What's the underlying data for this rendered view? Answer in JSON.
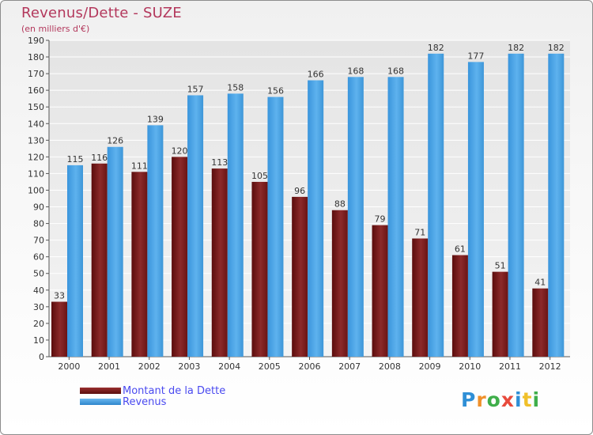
{
  "title": "Revenus/Dette - SUZE",
  "subtitle": "(en milliers d'€)",
  "logo": {
    "text": "Proxiti",
    "letters": [
      "P",
      "r",
      "o",
      "x",
      "i",
      "t",
      "i"
    ],
    "colors": [
      "#2f8fd6",
      "#f0902a",
      "#3fae4a",
      "#e84a3c",
      "#2f8fd6",
      "#f0c02a",
      "#3fae4a"
    ]
  },
  "chart_data": {
    "type": "bar",
    "categories": [
      "2000",
      "2001",
      "2002",
      "2003",
      "2004",
      "2005",
      "2006",
      "2007",
      "2008",
      "2009",
      "2010",
      "2011",
      "2012"
    ],
    "series": [
      {
        "name": "Montant de la Dette",
        "color": "#7a1f1f",
        "values": [
          33,
          116,
          111,
          120,
          113,
          105,
          96,
          88,
          79,
          71,
          61,
          51,
          41
        ],
        "labels": [
          "33",
          "116",
          "111",
          "120",
          "113",
          "105",
          "96",
          "88",
          "79",
          "71",
          "61",
          "51",
          "41"
        ]
      },
      {
        "name": "Revenus",
        "color": "#4aa3e6",
        "values": [
          115,
          126,
          139,
          157,
          158,
          156,
          166,
          168,
          168,
          182,
          177,
          182,
          182
        ],
        "labels": [
          "115",
          "126",
          "139",
          "157",
          "158",
          "156",
          "166",
          "168",
          "168",
          "182",
          "177",
          "182",
          "182"
        ]
      }
    ],
    "yticks": [
      0,
      10,
      20,
      30,
      40,
      50,
      60,
      70,
      80,
      90,
      100,
      110,
      120,
      130,
      140,
      150,
      160,
      170,
      180,
      190
    ],
    "ytick_labels": [
      "0",
      "10",
      "20",
      "30",
      "40",
      "50",
      "60",
      "70",
      "80",
      "90",
      "100",
      "110",
      "120",
      "130",
      "140",
      "150",
      "160",
      "170",
      "180",
      "190"
    ],
    "ylim": [
      0,
      190
    ],
    "grid": true,
    "legend": "bottom-left"
  }
}
